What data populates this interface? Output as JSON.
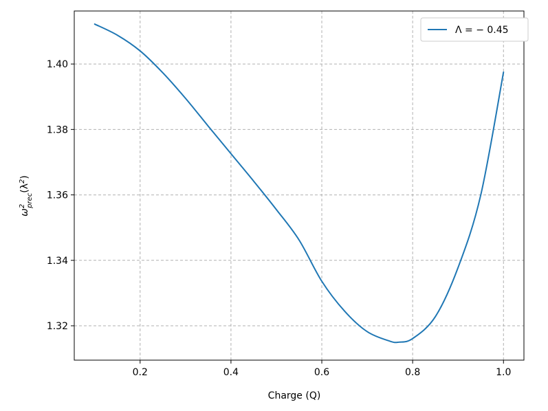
{
  "chart_data": {
    "type": "line",
    "xlabel": "Charge (Q)",
    "ylabel": {
      "base": "ω",
      "sup": "2",
      "sub": "prec",
      "unit_open": "(λ",
      "unit_sup": "2",
      "unit_close": ")"
    },
    "xlim": [
      0.055,
      1.045
    ],
    "ylim": [
      1.3095,
      1.4162
    ],
    "x_ticks": [
      0.2,
      0.4,
      0.6,
      0.8,
      1.0
    ],
    "x_tick_labels": [
      "0.2",
      "0.4",
      "0.6",
      "0.8",
      "1.0"
    ],
    "y_ticks": [
      1.32,
      1.34,
      1.36,
      1.38,
      1.4
    ],
    "y_tick_labels": [
      "1.32",
      "1.34",
      "1.36",
      "1.38",
      "1.40"
    ],
    "grid": true,
    "legend_position": "top-right",
    "series": [
      {
        "name": "Λ = − 0.45",
        "color": "#1f77b4",
        "x": [
          0.1,
          0.15,
          0.2,
          0.25,
          0.3,
          0.35,
          0.4,
          0.45,
          0.5,
          0.55,
          0.6,
          0.65,
          0.7,
          0.75,
          0.77,
          0.8,
          0.85,
          0.9,
          0.95,
          1.0
        ],
        "y": [
          1.4122,
          1.4088,
          1.404,
          1.3973,
          1.3895,
          1.381,
          1.3726,
          1.3642,
          1.3555,
          1.3462,
          1.3336,
          1.3245,
          1.3182,
          1.3153,
          1.315,
          1.3161,
          1.3228,
          1.3378,
          1.36,
          1.3975
        ]
      }
    ]
  }
}
